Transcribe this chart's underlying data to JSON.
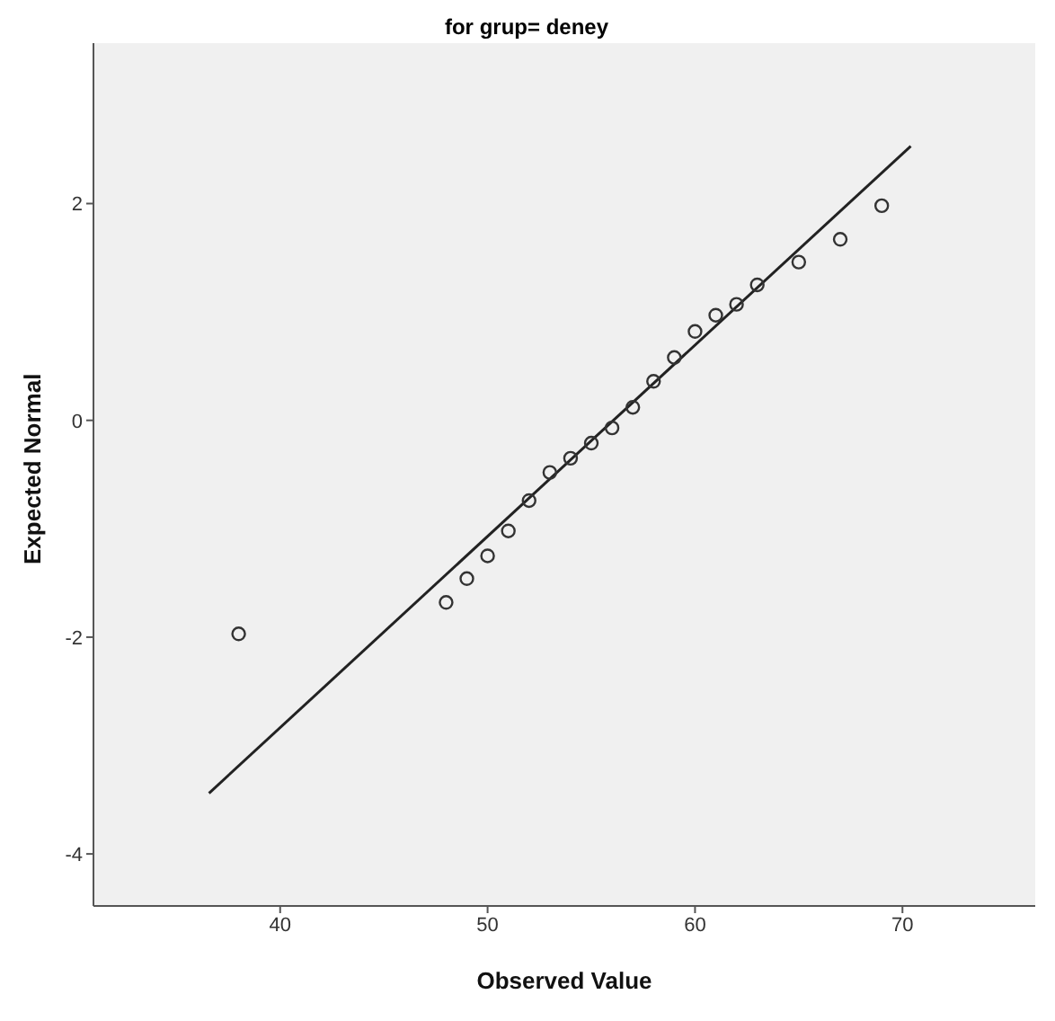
{
  "chart_data": {
    "type": "scatter",
    "title": "for grup= deney",
    "xlabel": "Observed Value",
    "ylabel": "Expected Normal",
    "xlim": [
      31,
      76.4
    ],
    "xticks": [
      40,
      50,
      60,
      70
    ],
    "ylim": [
      -4.48,
      3.48
    ],
    "yticks": [
      -4,
      -2,
      0,
      2
    ],
    "grid": false,
    "series": [
      {
        "color": "#333333",
        "marker": "circle",
        "x": [
          38,
          48,
          49,
          50,
          51,
          52,
          53,
          54,
          55,
          56,
          57,
          58,
          59,
          60,
          61,
          62,
          63,
          65,
          67,
          69
        ],
        "values": [
          -1.97,
          -1.68,
          -1.46,
          -1.25,
          -1.02,
          -0.74,
          -0.48,
          -0.35,
          -0.21,
          -0.07,
          0.12,
          0.36,
          0.58,
          0.82,
          0.97,
          1.07,
          1.25,
          1.46,
          1.67,
          1.98
        ]
      },
      {
        "type": "line",
        "color": "#222222",
        "marker": "none",
        "x": [
          36.57,
          70.4
        ],
        "values": [
          -3.44,
          2.53
        ]
      }
    ]
  }
}
